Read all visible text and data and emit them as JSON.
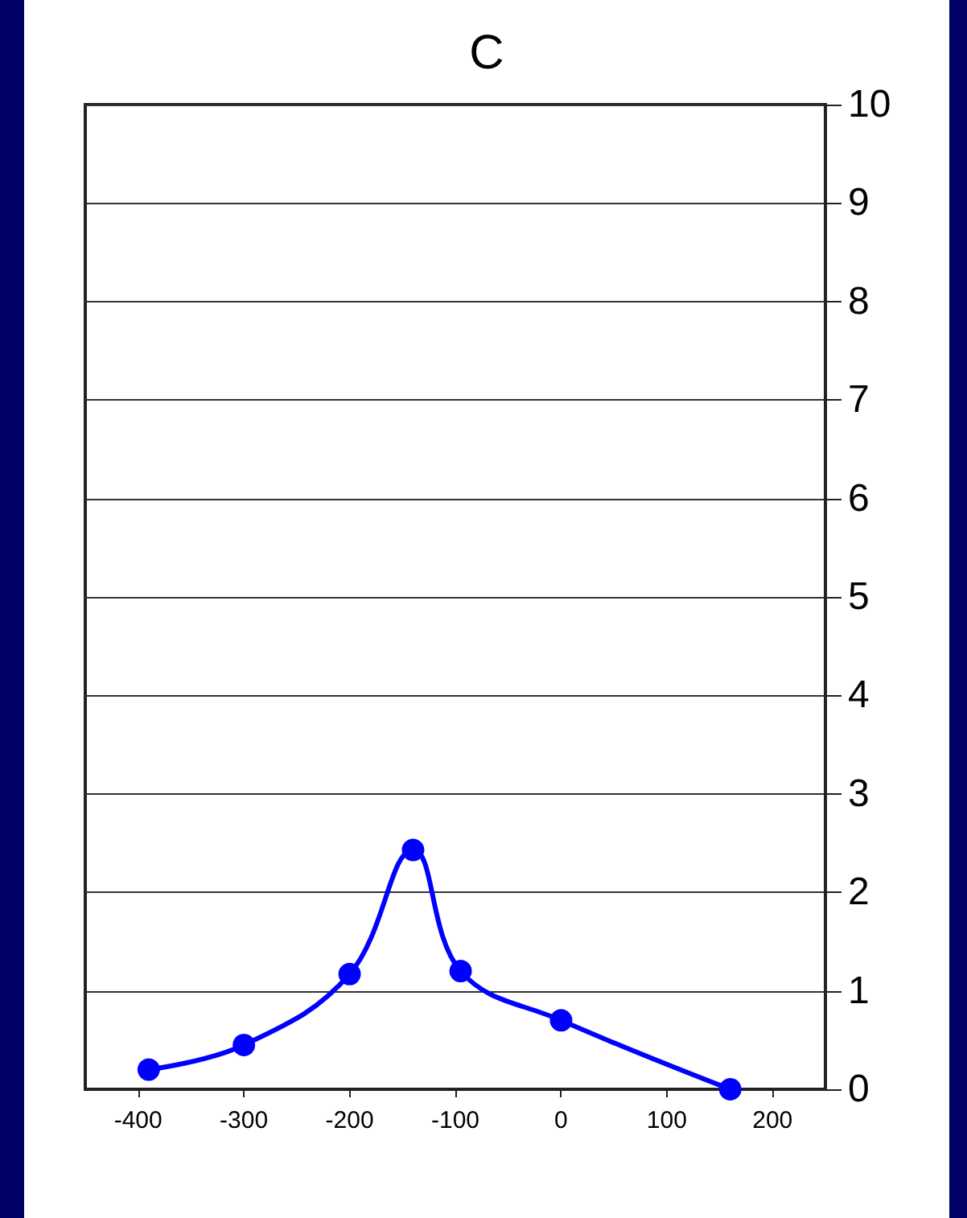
{
  "chart_data": {
    "type": "line",
    "title": "C",
    "x": [
      -390,
      -300,
      -200,
      -140,
      -95,
      0,
      160
    ],
    "series": [
      {
        "color": "#0000ff",
        "values": [
          0.2,
          0.45,
          1.17,
          2.43,
          1.2,
          0.7,
          0
        ]
      }
    ],
    "xlim": [
      -450,
      250
    ],
    "xticks": [
      -400,
      -300,
      -200,
      -100,
      0,
      100,
      200
    ],
    "ylim": [
      0,
      10
    ],
    "yticks": [
      0,
      1,
      2,
      3,
      4,
      5,
      6,
      7,
      8,
      9,
      10
    ],
    "grid": "y",
    "marker": "circle",
    "line_style": "solid"
  }
}
